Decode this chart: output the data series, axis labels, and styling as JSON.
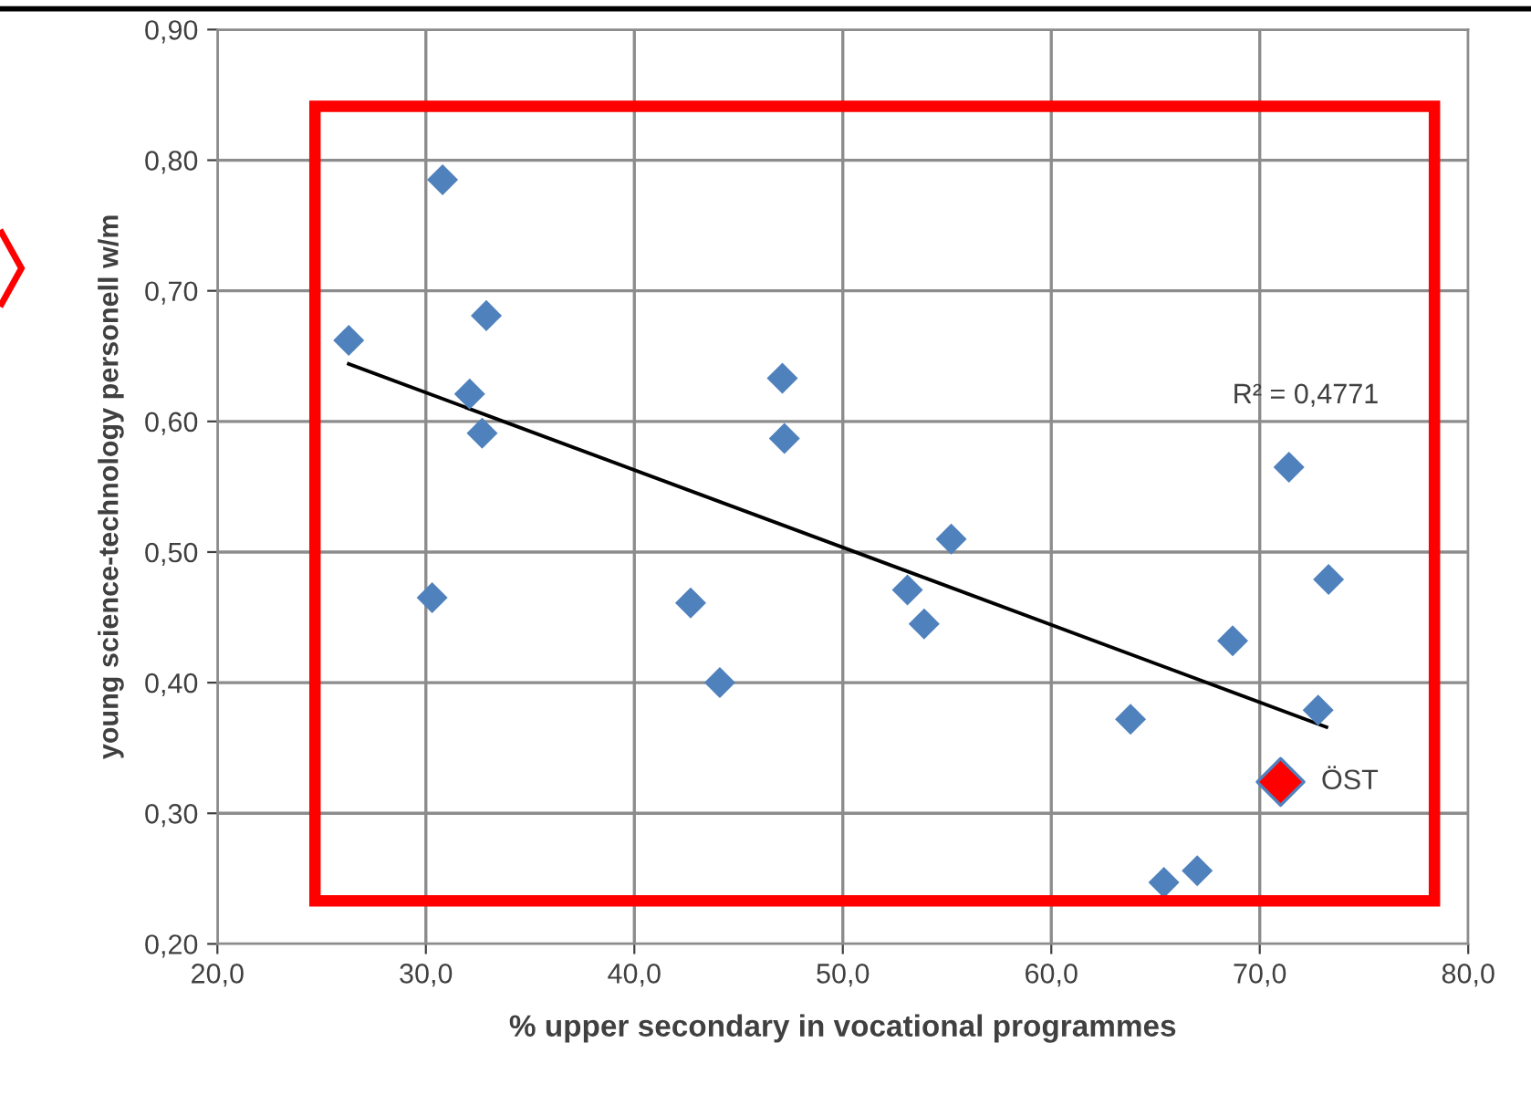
{
  "chart_data": {
    "type": "scatter",
    "xlabel": "% upper secondary in vocational programmes",
    "ylabel": "young science-technology personell w/m",
    "xlim": [
      20,
      80
    ],
    "xticks": [
      {
        "value": 20,
        "label": "20,0"
      },
      {
        "value": 30,
        "label": "30,0"
      },
      {
        "value": 40,
        "label": "40,0"
      },
      {
        "value": 50,
        "label": "50,0"
      },
      {
        "value": 60,
        "label": "60,0"
      },
      {
        "value": 70,
        "label": "70,0"
      },
      {
        "value": 80,
        "label": "80,0"
      }
    ],
    "ylim": [
      0.2,
      0.9
    ],
    "yticks": [
      {
        "value": 0.2,
        "label": "0,20"
      },
      {
        "value": 0.3,
        "label": "0,30"
      },
      {
        "value": 0.4,
        "label": "0,40"
      },
      {
        "value": 0.5,
        "label": "0,50"
      },
      {
        "value": 0.6,
        "label": "0,60"
      },
      {
        "value": 0.7,
        "label": "0,70"
      },
      {
        "value": 0.8,
        "label": "0,80"
      },
      {
        "value": 0.9,
        "label": "0,90"
      }
    ],
    "grid": true,
    "marker": "diamond",
    "series": [
      {
        "color": "#4f81bd",
        "x": [
          26.3,
          30.8,
          32.9,
          32.1,
          32.7,
          30.3,
          47.1,
          47.2,
          42.7,
          44.1,
          55.2,
          53.1,
          53.9,
          63.8,
          68.7,
          71.4,
          73.3,
          72.8,
          65.4,
          67.0
        ],
        "values": [
          0.662,
          0.785,
          0.681,
          0.621,
          0.591,
          0.465,
          0.633,
          0.587,
          0.461,
          0.4,
          0.51,
          0.471,
          0.445,
          0.372,
          0.432,
          0.565,
          0.479,
          0.379,
          0.247,
          0.256
        ]
      },
      {
        "name": "ÖST",
        "color": "#ff0000",
        "x": [
          71.0
        ],
        "values": [
          0.324
        ]
      },
      {
        "type": "line",
        "marker": "none",
        "color": "#000000",
        "x": [
          26.3,
          73.2
        ],
        "values": [
          0.644,
          0.366
        ]
      }
    ],
    "annotations": [
      "R² = 0,4771"
    ]
  }
}
